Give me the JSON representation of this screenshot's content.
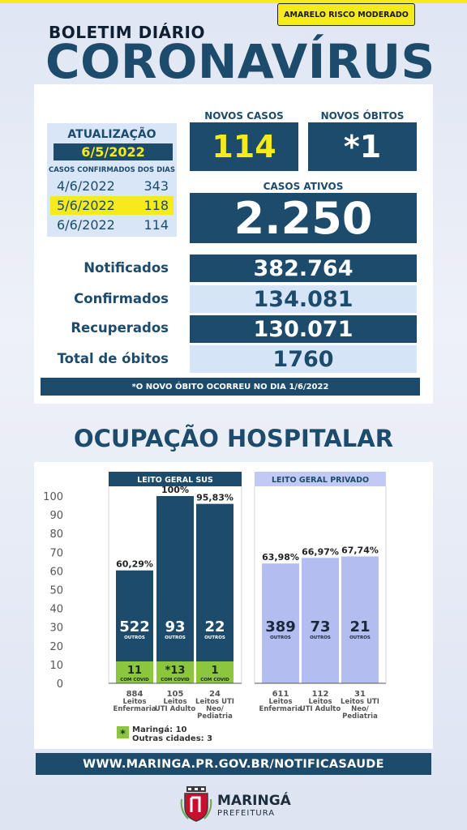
{
  "header": {
    "risk_badge": "AMARELO RISCO MODERADO",
    "bulletin_label": "BOLETIM DIÁRIO",
    "title": "CORONAVÍRUS"
  },
  "update": {
    "title": "ATUALIZAÇÃO",
    "date": "6/5/2022",
    "subtitle": "CASOS CONFIRMADOS DOS DIAS",
    "days": [
      {
        "date": "4/6/2022",
        "count": "343"
      },
      {
        "date": "5/6/2022",
        "count": "118"
      },
      {
        "date": "6/6/2022",
        "count": "114"
      }
    ]
  },
  "new_cases": {
    "label": "NOVOS CASOS",
    "value": "114"
  },
  "new_deaths": {
    "label": "NOVOS ÓBITOS",
    "value": "*1"
  },
  "active_cases": {
    "label": "CASOS ATIVOS",
    "value": "2.250"
  },
  "stats": [
    {
      "label": "Notificados",
      "value": "382.764"
    },
    {
      "label": "Confirmados",
      "value": "134.081"
    },
    {
      "label": "Recuperados",
      "value": "130.071"
    },
    {
      "label": "Total de óbitos",
      "value": "1760"
    }
  ],
  "note": "*O NOVO  ÓBITO OCORREU NO DIA 1/6/2022",
  "hospital_title": "OCUPAÇÃO HOSPITALAR",
  "colors": {
    "navy": "#1d4b6b",
    "yellow": "#f4ea1c",
    "green": "#8cc63f",
    "lavender": "#b3bdf0",
    "lavender_header": "#c2c9f3"
  },
  "chart_data": {
    "type": "bar",
    "ylim": [
      0,
      100
    ],
    "yticks": [
      "0",
      "10",
      "20",
      "30",
      "40",
      "50",
      "60",
      "70",
      "80",
      "90",
      "100"
    ],
    "groups": [
      {
        "name": "LEITO GERAL SUS",
        "bars": [
          {
            "occupancy": 60.29,
            "pct_label": "60,29%",
            "outros": "522",
            "outros_label": "OUTROS",
            "covid": "11",
            "covid_label": "COM COVID",
            "total": "884",
            "label_lines": [
              "Leitos",
              "Enfermaria"
            ]
          },
          {
            "occupancy": 100,
            "pct_label": "100%",
            "outros": "93",
            "outros_label": "OUTROS",
            "covid": "*13",
            "covid_label": "COM COVID",
            "total": "105",
            "label_lines": [
              "Leitos",
              "UTI Adulto"
            ]
          },
          {
            "occupancy": 95.83,
            "pct_label": "95,83%",
            "outros": "22",
            "outros_label": "OUTROS",
            "covid": "1",
            "covid_label": "COM COVID",
            "total": "24",
            "label_lines": [
              "Leitos UTI",
              "Neo/",
              "Pediatria"
            ]
          }
        ]
      },
      {
        "name": "LEITO GERAL PRIVADO",
        "bars": [
          {
            "occupancy": 63.98,
            "pct_label": "63,98%",
            "outros": "389",
            "outros_label": "OUTROS",
            "total": "611",
            "label_lines": [
              "Leitos",
              "Enfermaria"
            ]
          },
          {
            "occupancy": 66.97,
            "pct_label": "66,97%",
            "outros": "73",
            "outros_label": "OUTROS",
            "total": "112",
            "label_lines": [
              "Leitos",
              "UTI Adulto"
            ]
          },
          {
            "occupancy": 67.74,
            "pct_label": "67,74%",
            "outros": "21",
            "outros_label": "OUTROS",
            "total": "31",
            "label_lines": [
              "Leitos UTI",
              "Neo/",
              "Pediatria"
            ]
          }
        ]
      }
    ],
    "legend": {
      "symbol": "*",
      "lines": [
        "Maringá: 10",
        "Outras cidades: 3"
      ]
    }
  },
  "footer": {
    "url": "WWW.MARINGA.PR.GOV.BR/NOTIFICASAUDE",
    "logo_name": "MARINGÁ",
    "logo_sub": "PREFEITURA"
  }
}
